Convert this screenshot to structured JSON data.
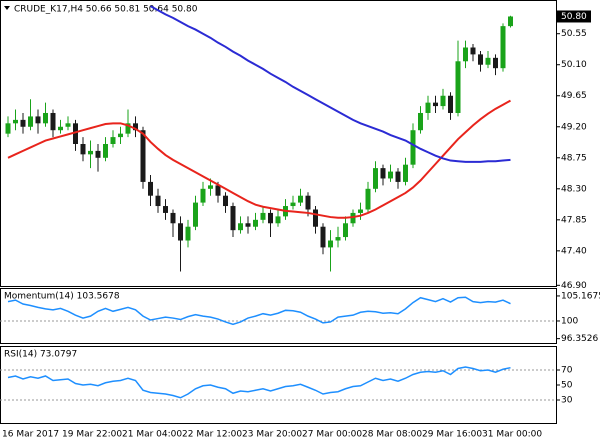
{
  "chart_data": [
    {
      "type": "candlestick",
      "title": "CRUDE_K17,H4 50.66 50.81 50.64 50.80",
      "x": [
        "16 Mar 2017",
        null,
        null,
        null,
        null,
        null,
        null,
        null,
        "19 Mar 22:00",
        null,
        null,
        null,
        null,
        null,
        null,
        null,
        "21 Mar 04:00",
        null,
        null,
        null,
        null,
        null,
        null,
        null,
        "22 Mar 12:00",
        null,
        null,
        null,
        null,
        null,
        null,
        null,
        "23 Mar 20:00",
        null,
        null,
        null,
        null,
        null,
        null,
        null,
        "27 Mar 00:00",
        null,
        null,
        null,
        null,
        null,
        null,
        null,
        "28 Mar 08:00",
        null,
        null,
        null,
        null,
        null,
        null,
        null,
        "29 Mar 16:00",
        null,
        null,
        null,
        null,
        null,
        null,
        null,
        "31 Mar 00:00",
        null,
        null,
        null
      ],
      "open": [
        49.1,
        49.25,
        49.3,
        49.2,
        49.35,
        49.25,
        49.4,
        49.15,
        49.2,
        49.25,
        48.95,
        48.8,
        48.85,
        48.75,
        48.95,
        49.05,
        49.1,
        49.25,
        49.15,
        48.4,
        48.2,
        48.05,
        47.95,
        47.8,
        47.55,
        47.75,
        48.1,
        48.3,
        48.35,
        48.2,
        48.05,
        47.7,
        47.8,
        47.75,
        47.85,
        47.95,
        47.8,
        47.9,
        48.05,
        48.1,
        48.2,
        48.0,
        47.75,
        47.45,
        47.55,
        47.6,
        47.8,
        47.95,
        48.0,
        48.3,
        48.6,
        48.45,
        48.55,
        48.4,
        48.65,
        49.15,
        49.4,
        49.55,
        49.5,
        49.65,
        49.4,
        50.15,
        50.35,
        50.25,
        50.1,
        50.2,
        50.05,
        50.66
      ],
      "high": [
        49.35,
        49.45,
        49.4,
        49.6,
        49.45,
        49.55,
        49.45,
        49.3,
        49.35,
        49.3,
        49.05,
        49.0,
        48.95,
        49.05,
        49.15,
        49.2,
        49.45,
        49.35,
        49.2,
        48.5,
        48.3,
        48.15,
        48.0,
        47.9,
        47.85,
        48.2,
        48.4,
        48.45,
        48.4,
        48.25,
        48.1,
        47.9,
        47.9,
        47.95,
        48.05,
        48.0,
        48.0,
        48.15,
        48.2,
        48.3,
        48.25,
        48.05,
        47.8,
        47.7,
        47.75,
        47.9,
        48.0,
        48.1,
        48.4,
        48.7,
        48.65,
        48.65,
        48.6,
        48.75,
        49.25,
        49.5,
        49.65,
        49.65,
        49.75,
        49.7,
        50.45,
        50.45,
        50.4,
        50.3,
        50.3,
        50.25,
        50.7,
        50.81
      ],
      "low": [
        49.05,
        49.15,
        49.1,
        49.15,
        49.1,
        49.2,
        49.05,
        49.1,
        49.15,
        48.85,
        48.7,
        48.6,
        48.55,
        48.7,
        48.9,
        48.95,
        49.05,
        49.05,
        48.3,
        48.05,
        47.95,
        47.85,
        47.6,
        47.1,
        47.45,
        47.7,
        48.05,
        48.2,
        48.1,
        47.95,
        47.6,
        47.65,
        47.65,
        47.7,
        47.8,
        47.6,
        47.75,
        47.85,
        48.0,
        48.05,
        47.9,
        47.65,
        47.35,
        47.1,
        47.45,
        47.55,
        47.75,
        47.85,
        47.95,
        48.25,
        48.35,
        48.4,
        48.3,
        48.35,
        48.6,
        49.1,
        49.3,
        49.4,
        49.45,
        49.3,
        49.35,
        50.05,
        50.15,
        50.0,
        50.05,
        49.95,
        50.0,
        50.64
      ],
      "close": [
        49.25,
        49.3,
        49.2,
        49.35,
        49.25,
        49.4,
        49.15,
        49.2,
        49.25,
        48.95,
        48.8,
        48.85,
        48.75,
        48.95,
        49.05,
        49.1,
        49.25,
        49.15,
        48.4,
        48.2,
        48.05,
        47.95,
        47.8,
        47.55,
        47.75,
        48.1,
        48.3,
        48.35,
        48.2,
        48.05,
        47.7,
        47.8,
        47.75,
        47.85,
        47.95,
        47.8,
        47.9,
        48.05,
        48.1,
        48.2,
        48.0,
        47.75,
        47.45,
        47.55,
        47.6,
        47.8,
        47.95,
        48.0,
        48.3,
        48.6,
        48.45,
        48.55,
        48.4,
        48.65,
        49.15,
        49.4,
        49.55,
        49.5,
        49.65,
        49.4,
        50.15,
        50.35,
        50.25,
        50.1,
        50.2,
        50.05,
        50.66,
        50.8
      ],
      "up_color": "#1aa31a",
      "down_color": "#1a1a1a",
      "overlays": [
        {
          "color": "#e8241c",
          "values": [
            48.75,
            48.8,
            48.85,
            48.9,
            48.95,
            49.0,
            49.03,
            49.06,
            49.09,
            49.12,
            49.15,
            49.18,
            49.21,
            49.24,
            49.25,
            49.25,
            49.22,
            49.17,
            49.1,
            48.98,
            48.88,
            48.79,
            48.72,
            48.66,
            48.6,
            48.54,
            48.48,
            48.42,
            48.36,
            48.3,
            48.24,
            48.18,
            48.12,
            48.07,
            48.04,
            48.02,
            48.0,
            47.98,
            47.97,
            47.96,
            47.95,
            47.93,
            47.91,
            47.89,
            47.88,
            47.88,
            47.89,
            47.91,
            47.95,
            48.0,
            48.06,
            48.12,
            48.18,
            48.24,
            48.32,
            48.42,
            48.54,
            48.66,
            48.78,
            48.9,
            49.02,
            49.12,
            49.22,
            49.31,
            49.39,
            49.46,
            49.52,
            49.58
          ]
        },
        {
          "color": "#2b2bd4",
          "values": [
            null,
            null,
            null,
            null,
            null,
            null,
            null,
            null,
            null,
            null,
            null,
            null,
            null,
            null,
            null,
            null,
            null,
            null,
            null,
            50.95,
            50.89,
            50.83,
            50.78,
            50.72,
            50.66,
            50.61,
            50.55,
            50.49,
            50.42,
            50.36,
            50.29,
            50.23,
            50.16,
            50.1,
            50.04,
            49.97,
            49.91,
            49.85,
            49.78,
            49.72,
            49.66,
            49.6,
            49.54,
            49.48,
            49.42,
            49.36,
            49.3,
            49.25,
            49.21,
            49.17,
            49.13,
            49.08,
            49.04,
            49.0,
            48.94,
            48.88,
            48.83,
            48.78,
            48.74,
            48.71,
            48.7,
            48.69,
            48.69,
            48.69,
            48.7,
            48.7,
            48.71,
            48.72
          ]
        }
      ],
      "current_price": {
        "value": 50.8,
        "label": "50.80"
      },
      "ylim": [
        46.89,
        51.01
      ],
      "yticks": [
        {
          "value": 50.55,
          "label": "50.55"
        },
        {
          "value": 50.1,
          "label": "50.10"
        },
        {
          "value": 49.65,
          "label": "49.65"
        },
        {
          "value": 49.2,
          "label": "49.20"
        },
        {
          "value": 48.75,
          "label": "48.75"
        },
        {
          "value": 48.3,
          "label": "48.30"
        },
        {
          "value": 47.85,
          "label": "47.85"
        },
        {
          "value": 47.4,
          "label": "47.40"
        },
        {
          "value": 46.9,
          "label": "46.90"
        }
      ]
    },
    {
      "type": "line",
      "title": "Momentum(14) 103.5678",
      "color": "#1e8fff",
      "values": [
        104.0,
        104.3,
        103.5,
        103.2,
        102.8,
        102.5,
        102.3,
        102.6,
        102.0,
        101.2,
        100.6,
        101.0,
        102.0,
        102.6,
        102.0,
        102.4,
        102.8,
        102.3,
        101.0,
        100.2,
        100.5,
        100.8,
        100.6,
        100.3,
        100.9,
        101.3,
        101.0,
        100.8,
        100.4,
        99.8,
        99.3,
        99.8,
        100.6,
        101.0,
        101.5,
        101.2,
        101.6,
        102.2,
        102.1,
        101.8,
        101.0,
        100.4,
        99.6,
        99.8,
        100.8,
        101.0,
        101.2,
        101.8,
        102.0,
        101.9,
        101.6,
        101.7,
        101.5,
        102.5,
        103.8,
        104.8,
        104.4,
        104.0,
        104.6,
        103.9,
        104.8,
        104.9,
        104.0,
        103.8,
        104.0,
        103.9,
        104.3,
        103.5678
      ],
      "ylim": [
        95.66,
        106.6
      ],
      "yticks": [
        105.1675,
        100,
        96.3526
      ],
      "levels": [
        100
      ]
    },
    {
      "type": "line",
      "title": "RSI(14) 73.0797",
      "color": "#1e8fff",
      "values": [
        60,
        62,
        58,
        61,
        59,
        62,
        56,
        57,
        58,
        52,
        50,
        51,
        49,
        53,
        55,
        56,
        59,
        56,
        43,
        40,
        39,
        38,
        36,
        33,
        38,
        45,
        49,
        50,
        47,
        45,
        39,
        42,
        41,
        43,
        45,
        42,
        45,
        48,
        49,
        51,
        47,
        43,
        38,
        40,
        41,
        45,
        48,
        49,
        54,
        59,
        56,
        58,
        55,
        59,
        64,
        67,
        68,
        67,
        69,
        64,
        72,
        74,
        72,
        69,
        70,
        67,
        71,
        73.0797
      ],
      "ylim": [
        0,
        100
      ],
      "yticks": [
        70,
        50,
        30
      ],
      "levels": [
        70,
        30
      ]
    }
  ]
}
